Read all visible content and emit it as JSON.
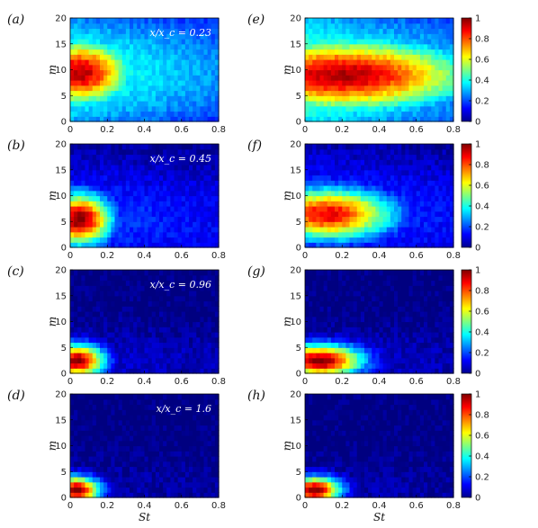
{
  "figure": {
    "x_axis_label": "St",
    "y_axis_label": "m",
    "x_ticks": [
      "0",
      "0.2",
      "0.4",
      "0.6",
      "0.8"
    ],
    "y_ticks": [
      "0",
      "5",
      "10",
      "15",
      "20"
    ],
    "colorbar_ticks": [
      "0",
      "0.2",
      "0.4",
      "0.6",
      "0.8",
      "1"
    ]
  },
  "chart_data": [
    {
      "type": "heatmap",
      "panel_label": "(a)",
      "annotation": "x/x_c = 0.23",
      "xlabel": "",
      "ylabel": "m",
      "xlim": [
        0,
        0.8
      ],
      "ylim": [
        0,
        20
      ],
      "peak": {
        "St": 0.05,
        "m": 9.5,
        "value": 0.95
      },
      "spread_m": 4.5,
      "spread_St": 0.2,
      "background": 0.45
    },
    {
      "type": "heatmap",
      "panel_label": "(e)",
      "annotation": "",
      "xlabel": "",
      "ylabel": "",
      "xlim": [
        0,
        0.8
      ],
      "ylim": [
        0,
        20
      ],
      "peak": {
        "St": 0.2,
        "m": 9,
        "value": 0.95
      },
      "spread_m": 5,
      "spread_St": 0.5,
      "background": 0.5,
      "colorbar": {
        "range": [
          0,
          1
        ]
      }
    },
    {
      "type": "heatmap",
      "panel_label": "(b)",
      "annotation": "x/x_c = 0.45",
      "xlabel": "",
      "ylabel": "m",
      "xlim": [
        0,
        0.8
      ],
      "ylim": [
        0,
        20
      ],
      "peak": {
        "St": 0.05,
        "m": 5.5,
        "value": 1.0
      },
      "spread_m": 3.5,
      "spread_St": 0.12,
      "background": 0.2
    },
    {
      "type": "heatmap",
      "panel_label": "(f)",
      "annotation": "",
      "xlabel": "",
      "ylabel": "",
      "xlim": [
        0,
        0.8
      ],
      "ylim": [
        0,
        20
      ],
      "peak": {
        "St": 0.12,
        "m": 6.5,
        "value": 0.9
      },
      "spread_m": 3.5,
      "spread_St": 0.25,
      "background": 0.22,
      "colorbar": {
        "range": [
          0,
          1
        ]
      }
    },
    {
      "type": "heatmap",
      "panel_label": "(c)",
      "annotation": "x/x_c = 0.96",
      "xlabel": "",
      "ylabel": "m",
      "xlim": [
        0,
        0.8
      ],
      "ylim": [
        0,
        20
      ],
      "peak": {
        "St": 0.04,
        "m": 2.5,
        "value": 1.0
      },
      "spread_m": 2.2,
      "spread_St": 0.1,
      "background": 0.08
    },
    {
      "type": "heatmap",
      "panel_label": "(g)",
      "annotation": "",
      "xlabel": "",
      "ylabel": "",
      "xlim": [
        0,
        0.8
      ],
      "ylim": [
        0,
        20
      ],
      "peak": {
        "St": 0.08,
        "m": 2.5,
        "value": 1.0
      },
      "spread_m": 2.2,
      "spread_St": 0.16,
      "background": 0.08,
      "colorbar": {
        "range": [
          0,
          1
        ]
      }
    },
    {
      "type": "heatmap",
      "panel_label": "(d)",
      "annotation": "x/x_c = 1.6",
      "xlabel": "St",
      "ylabel": "m",
      "xlim": [
        0,
        0.8
      ],
      "ylim": [
        0,
        20
      ],
      "peak": {
        "St": 0.03,
        "m": 1.5,
        "value": 1.0
      },
      "spread_m": 1.8,
      "spread_St": 0.09,
      "background": 0.05
    },
    {
      "type": "heatmap",
      "panel_label": "(h)",
      "annotation": "",
      "xlabel": "St",
      "ylabel": "",
      "xlim": [
        0,
        0.8
      ],
      "ylim": [
        0,
        20
      ],
      "peak": {
        "St": 0.05,
        "m": 1.5,
        "value": 1.0
      },
      "spread_m": 1.8,
      "spread_St": 0.1,
      "background": 0.05,
      "colorbar": {
        "range": [
          0,
          1
        ]
      }
    }
  ]
}
